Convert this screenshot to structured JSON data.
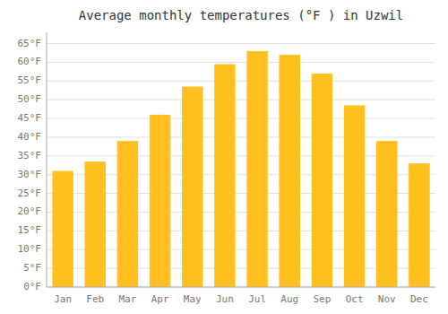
{
  "chart_data": {
    "type": "bar",
    "title": "Average monthly temperatures (°F ) in Uzwil",
    "categories": [
      "Jan",
      "Feb",
      "Mar",
      "Apr",
      "May",
      "Jun",
      "Jul",
      "Aug",
      "Sep",
      "Oct",
      "Nov",
      "Dec"
    ],
    "values": [
      31,
      33.5,
      39,
      46,
      53.5,
      59.5,
      63,
      62,
      57,
      48.5,
      39,
      33
    ],
    "color": "#FFC020",
    "ylim": [
      0,
      68
    ],
    "yticks": [
      {
        "value": 0,
        "label": "0°F"
      },
      {
        "value": 5,
        "label": "5°F"
      },
      {
        "value": 10,
        "label": "10°F"
      },
      {
        "value": 15,
        "label": "15°F"
      },
      {
        "value": 20,
        "label": "20°F"
      },
      {
        "value": 25,
        "label": "25°F"
      },
      {
        "value": 30,
        "label": "30°F"
      },
      {
        "value": 35,
        "label": "35°F"
      },
      {
        "value": 40,
        "label": "40°F"
      },
      {
        "value": 45,
        "label": "45°F"
      },
      {
        "value": 50,
        "label": "50°F"
      },
      {
        "value": 55,
        "label": "55°F"
      },
      {
        "value": 60,
        "label": "60°F"
      },
      {
        "value": 65,
        "label": "65°F"
      }
    ],
    "grid": true
  }
}
